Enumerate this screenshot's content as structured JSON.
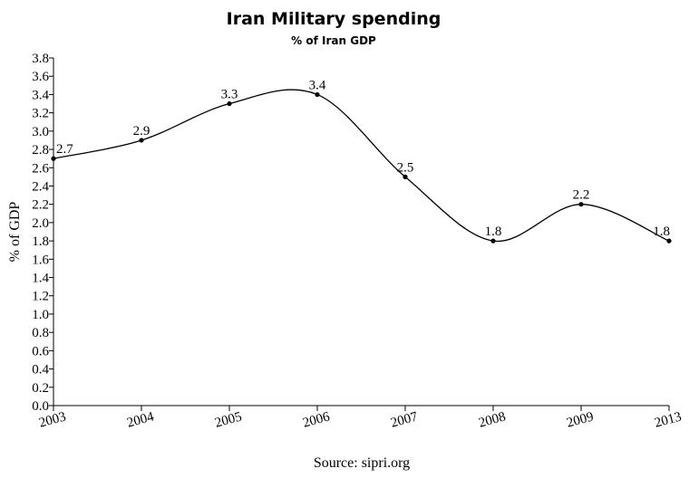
{
  "chart_data": {
    "type": "line",
    "title": "Iran Military spending",
    "subtitle": "% of Iran GDP",
    "ylabel": "% of GDP",
    "xlabel": "",
    "source": "Source: sipri.org",
    "categories": [
      "2003",
      "2004",
      "2005",
      "2006",
      "2007",
      "2008",
      "2009",
      "2013"
    ],
    "series": [
      {
        "values": [
          2.7,
          2.9,
          3.3,
          3.4,
          2.5,
          1.8,
          2.2,
          1.8
        ]
      }
    ],
    "data_labels": [
      "2.7",
      "2.9",
      "3.3",
      "3.4",
      "2.5",
      "1.8",
      "2.2",
      "1.8"
    ],
    "ylim": [
      0,
      3.8
    ],
    "yticks": [
      "0.0",
      "0.2",
      "0.4",
      "0.6",
      "0.8",
      "1.0",
      "1.2",
      "1.4",
      "1.6",
      "1.8",
      "2.0",
      "2.2",
      "2.4",
      "2.6",
      "2.8",
      "3.0",
      "3.2",
      "3.4",
      "3.6",
      "3.8"
    ],
    "smooth": true,
    "grid": false,
    "legend": "none",
    "line_color": "#000000"
  }
}
